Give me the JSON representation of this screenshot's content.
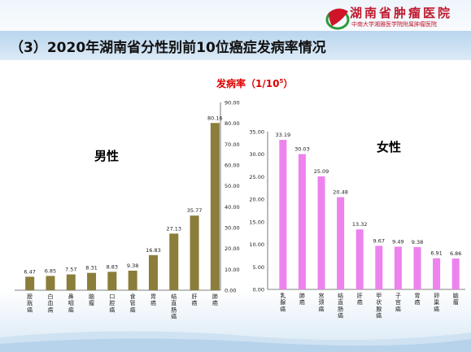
{
  "header": {
    "title": "（3）2020年湖南省分性别前10位癌症发病率情况",
    "logo_org": "湖南省肿瘤医院",
    "logo_sub": "中南大学湘雅医学院附属肿瘤医院"
  },
  "unit": {
    "text": "发病率（1/10",
    "exp": "5",
    "close": "）"
  },
  "colors": {
    "male_bar": "#8b7d3a",
    "female_bar": "#ee82ee",
    "unit_red": "#e00000"
  },
  "chart_data": [
    {
      "type": "bar",
      "name": "male",
      "title": "男性",
      "categories": [
        "膀胱癌",
        "白血病",
        "鼻咽癌",
        "脑瘤",
        "口腔癌",
        "食管癌",
        "胃癌",
        "结直肠癌",
        "肝癌",
        "肺癌"
      ],
      "values": [
        6.47,
        6.85,
        7.57,
        8.31,
        8.83,
        9.38,
        16.83,
        27.13,
        35.77,
        80.16
      ],
      "ylim": [
        0,
        90
      ],
      "yticks": [
        "0.00",
        "10.00",
        "20.00",
        "30.00",
        "40.00",
        "50.00",
        "60.00",
        "70.00",
        "80.00",
        "90.00"
      ],
      "ytick_values": [
        0,
        10,
        20,
        30,
        40,
        50,
        60,
        70,
        80,
        90
      ],
      "axis_position": "right",
      "grid": false
    },
    {
      "type": "bar",
      "name": "female",
      "title": "女性",
      "categories": [
        "乳腺癌",
        "肺癌",
        "宫颈癌",
        "结直肠癌",
        "肝癌",
        "甲状腺癌",
        "子宫癌",
        "胃癌",
        "卵巢癌",
        "脑瘤"
      ],
      "values": [
        33.19,
        30.03,
        25.09,
        20.48,
        13.32,
        9.67,
        9.49,
        9.38,
        6.91,
        6.86
      ],
      "ylim": [
        0,
        35
      ],
      "yticks": [
        "0.00",
        "5.00",
        "10.00",
        "15.00",
        "20.00",
        "25.00",
        "30.00",
        "35.00"
      ],
      "ytick_values": [
        0,
        5,
        10,
        15,
        20,
        25,
        30,
        35
      ],
      "axis_position": "left",
      "grid": false
    }
  ]
}
